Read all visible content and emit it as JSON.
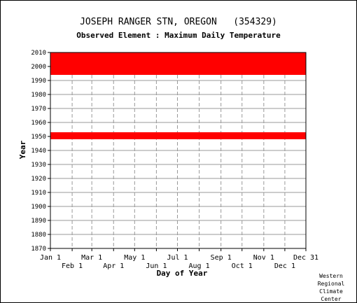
{
  "title": "JOSEPH RANGER STN, OREGON   (354329)",
  "subtitle": "Observed Element : Maximum Daily Temperature",
  "credit": [
    "Western",
    "Regional",
    "Climate",
    "Center"
  ],
  "colors": {
    "data": "#ff0000",
    "grid": "#999999",
    "axis": "#000000"
  },
  "chart_data": {
    "type": "bar",
    "title": "JOSEPH RANGER STN, OREGON   (354329)",
    "subtitle": "Observed Element : Maximum Daily Temperature",
    "xlabel": "Day of Year",
    "ylabel": "Year",
    "xlim": [
      1,
      365
    ],
    "ylim": [
      1870,
      2010
    ],
    "y_ticks": [
      1870,
      1880,
      1890,
      1900,
      1910,
      1920,
      1930,
      1940,
      1950,
      1960,
      1970,
      1980,
      1990,
      2000,
      2010
    ],
    "x_ticks_top": [
      {
        "label": "Jan 1",
        "day": 1
      },
      {
        "label": "Mar 1",
        "day": 60
      },
      {
        "label": "May 1",
        "day": 121
      },
      {
        "label": "Jul 1",
        "day": 182
      },
      {
        "label": "Sep 1",
        "day": 244
      },
      {
        "label": "Nov 1",
        "day": 305
      },
      {
        "label": "Dec 31",
        "day": 365
      }
    ],
    "x_ticks_bottom": [
      {
        "label": "Feb 1",
        "day": 32
      },
      {
        "label": "Apr 1",
        "day": 91
      },
      {
        "label": "Jun 1",
        "day": 152
      },
      {
        "label": "Aug 1",
        "day": 213
      },
      {
        "label": "Oct 1",
        "day": 274
      },
      {
        "label": "Dec 1",
        "day": 335
      }
    ],
    "grid": true,
    "periods_of_record": [
      {
        "start_year": 1948,
        "end_year": 1953,
        "start_day": 1,
        "end_day": 365
      },
      {
        "start_year": 1994,
        "end_year": 2010,
        "start_day": 1,
        "end_day": 365
      }
    ]
  }
}
